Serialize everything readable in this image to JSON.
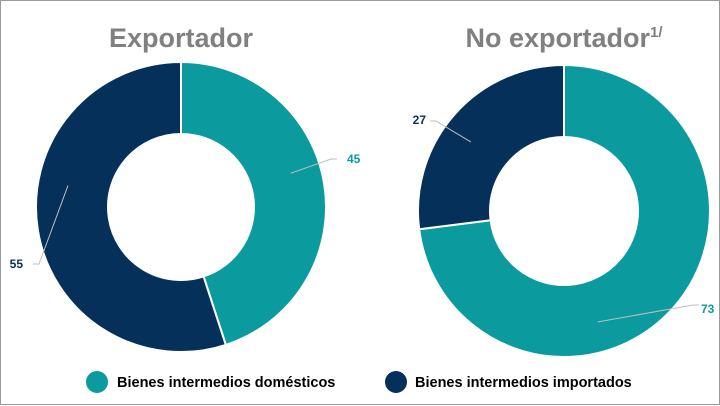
{
  "chart_data": [
    {
      "type": "pie",
      "donut": true,
      "title": "Exportador",
      "title_superscript": "",
      "categories": [
        "Bienes intermedios domésticos",
        "Bienes intermedios importados"
      ],
      "values": [
        45,
        55
      ]
    },
    {
      "type": "pie",
      "donut": true,
      "title": "No exportador",
      "title_superscript": "1/",
      "categories": [
        "Bienes intermedios domésticos",
        "Bienes intermedios importados"
      ],
      "values": [
        73,
        27
      ]
    }
  ],
  "colors": {
    "domesticos": "#0b9a9e",
    "importados": "#04305a",
    "title": "#808080"
  },
  "legend": [
    {
      "label": "Bienes intermedios domésticos",
      "color": "#0b9a9e"
    },
    {
      "label": "Bienes intermedios importados",
      "color": "#04305a"
    }
  ]
}
